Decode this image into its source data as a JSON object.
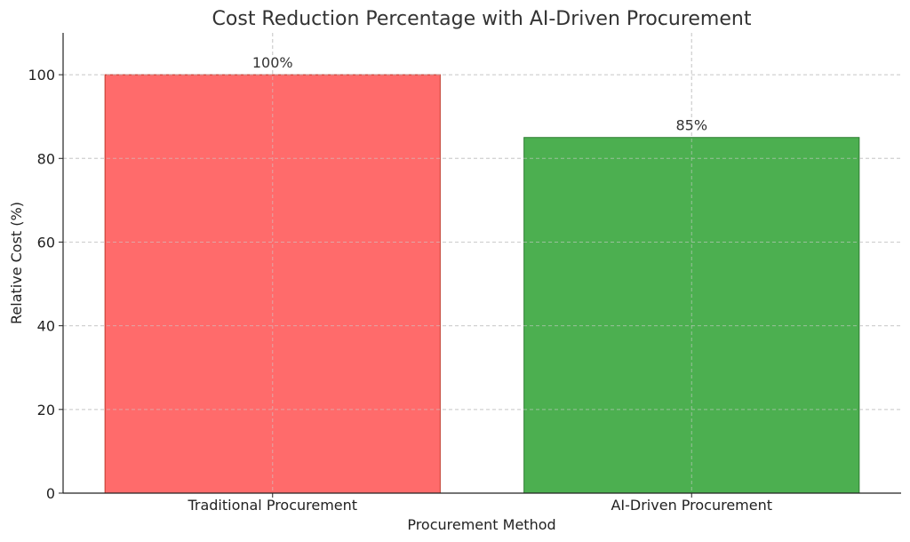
{
  "chart_data": {
    "type": "bar",
    "title": "Cost Reduction Percentage with AI-Driven Procurement",
    "xlabel": "Procurement Method",
    "ylabel": "Relative Cost (%)",
    "categories": [
      "Traditional Procurement",
      "AI-Driven Procurement"
    ],
    "values": [
      100,
      85
    ],
    "data_labels": [
      "100%",
      "85%"
    ],
    "colors": [
      "#ff6b6b",
      "#4caf50"
    ],
    "edge_colors": [
      "#c0392b",
      "#2e7d32"
    ],
    "ylim": [
      0,
      110
    ],
    "yticks": [
      0,
      20,
      40,
      60,
      80,
      100
    ],
    "grid": true,
    "legend": "none"
  }
}
